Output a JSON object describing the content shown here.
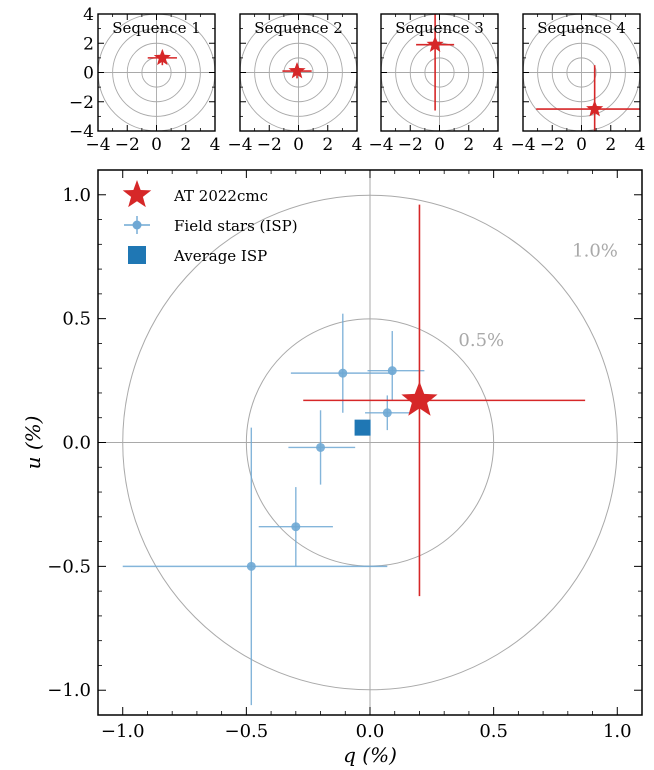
{
  "chart_data": [
    {
      "type": "scatter",
      "title": "Sequence 1",
      "xlim": [
        -4,
        4
      ],
      "ylim": [
        -4,
        4
      ],
      "xticks": [
        "−4",
        "−2",
        "0",
        "2",
        "4"
      ],
      "yticks": [
        "4",
        "2",
        "0",
        "−2",
        "−4"
      ],
      "circle_radii": [
        1,
        2,
        3,
        4
      ],
      "point": {
        "q": 0.4,
        "u": 1.0,
        "q_err": 1.0,
        "u_err": 0.5
      },
      "colors": {
        "point": "#d62728",
        "rings": "#a9a9a9"
      }
    },
    {
      "type": "scatter",
      "title": "Sequence 2",
      "xlim": [
        -4,
        4
      ],
      "ylim": [
        -4,
        4
      ],
      "xticks": [
        "−4",
        "−2",
        "0",
        "2",
        "4"
      ],
      "circle_radii": [
        1,
        2,
        3,
        4
      ],
      "point": {
        "q": -0.1,
        "u": 0.1,
        "q_err": 1.0,
        "u_err": 0.5
      },
      "colors": {
        "point": "#d62728",
        "rings": "#a9a9a9"
      }
    },
    {
      "type": "scatter",
      "title": "Sequence 3",
      "xlim": [
        -4,
        4
      ],
      "ylim": [
        -4,
        4
      ],
      "xticks": [
        "−4",
        "−2",
        "0",
        "2",
        "4"
      ],
      "circle_radii": [
        1,
        2,
        3,
        4
      ],
      "point": {
        "q": -0.3,
        "u": 1.9,
        "q_err": 1.3,
        "u_err": 4.5
      },
      "colors": {
        "point": "#d62728",
        "rings": "#a9a9a9"
      }
    },
    {
      "type": "scatter",
      "title": "Sequence 4",
      "xlim": [
        -4,
        4
      ],
      "ylim": [
        -4,
        4
      ],
      "xticks": [
        "−4",
        "−2",
        "0",
        "2",
        "4"
      ],
      "circle_radii": [
        1,
        2,
        3,
        4
      ],
      "point": {
        "q": 0.9,
        "u": -2.5,
        "q_err": 4.0,
        "u_err": 3.0
      },
      "colors": {
        "point": "#d62728",
        "rings": "#a9a9a9"
      }
    },
    {
      "type": "scatter",
      "xlabel": "q (%)",
      "ylabel": "u (%)",
      "xlim": [
        -1.1,
        1.1
      ],
      "ylim": [
        -1.1,
        1.1
      ],
      "xticks": [
        {
          "v": -1.0,
          "label": "−1.0"
        },
        {
          "v": -0.5,
          "label": "−0.5"
        },
        {
          "v": 0.0,
          "label": "0.0"
        },
        {
          "v": 0.5,
          "label": "0.5"
        },
        {
          "v": 1.0,
          "label": "1.0"
        }
      ],
      "yticks": [
        {
          "v": 1.0,
          "label": "1.0"
        },
        {
          "v": 0.5,
          "label": "0.5"
        },
        {
          "v": 0.0,
          "label": "0.0"
        },
        {
          "v": -0.5,
          "label": "−0.5"
        },
        {
          "v": -1.0,
          "label": "−1.0"
        }
      ],
      "circles": [
        {
          "radius": 0.5,
          "label": "0.5%"
        },
        {
          "radius": 1.0,
          "label": "1.0%"
        }
      ],
      "legend": {
        "position": "top-left",
        "entries": [
          "AT 2022cmc",
          "Field stars (ISP)",
          "Average ISP"
        ]
      },
      "series": [
        {
          "name": "AT 2022cmc",
          "marker": "star",
          "color": "#d62728",
          "points": [
            {
              "q": 0.2,
              "u": 0.17,
              "q_lo": 0.47,
              "q_hi": 0.67,
              "u_lo": 0.79,
              "u_hi": 0.79
            }
          ]
        },
        {
          "name": "Field stars (ISP)",
          "marker": "circle",
          "color": "#6fa8d4",
          "points": [
            {
              "q": -0.11,
              "u": 0.28,
              "q_lo": 0.21,
              "q_hi": 0.21,
              "u_lo": 0.16,
              "u_hi": 0.24
            },
            {
              "q": 0.09,
              "u": 0.29,
              "q_lo": 0.1,
              "q_hi": 0.13,
              "u_lo": 0.12,
              "u_hi": 0.16
            },
            {
              "q": 0.07,
              "u": 0.12,
              "q_lo": 0.09,
              "q_hi": 0.09,
              "u_lo": 0.07,
              "u_hi": 0.07
            },
            {
              "q": -0.2,
              "u": -0.02,
              "q_lo": 0.13,
              "q_hi": 0.14,
              "u_lo": 0.15,
              "u_hi": 0.15
            },
            {
              "q": -0.3,
              "u": -0.34,
              "q_lo": 0.15,
              "q_hi": 0.15,
              "u_lo": 0.16,
              "u_hi": 0.16
            },
            {
              "q": -0.48,
              "u": -0.5,
              "q_lo": 0.52,
              "q_hi": 0.55,
              "u_lo": 0.56,
              "u_hi": 0.56
            }
          ]
        },
        {
          "name": "Average ISP",
          "marker": "square",
          "color": "#1f77b4",
          "points": [
            {
              "q": -0.03,
              "u": 0.06
            }
          ]
        }
      ]
    }
  ]
}
